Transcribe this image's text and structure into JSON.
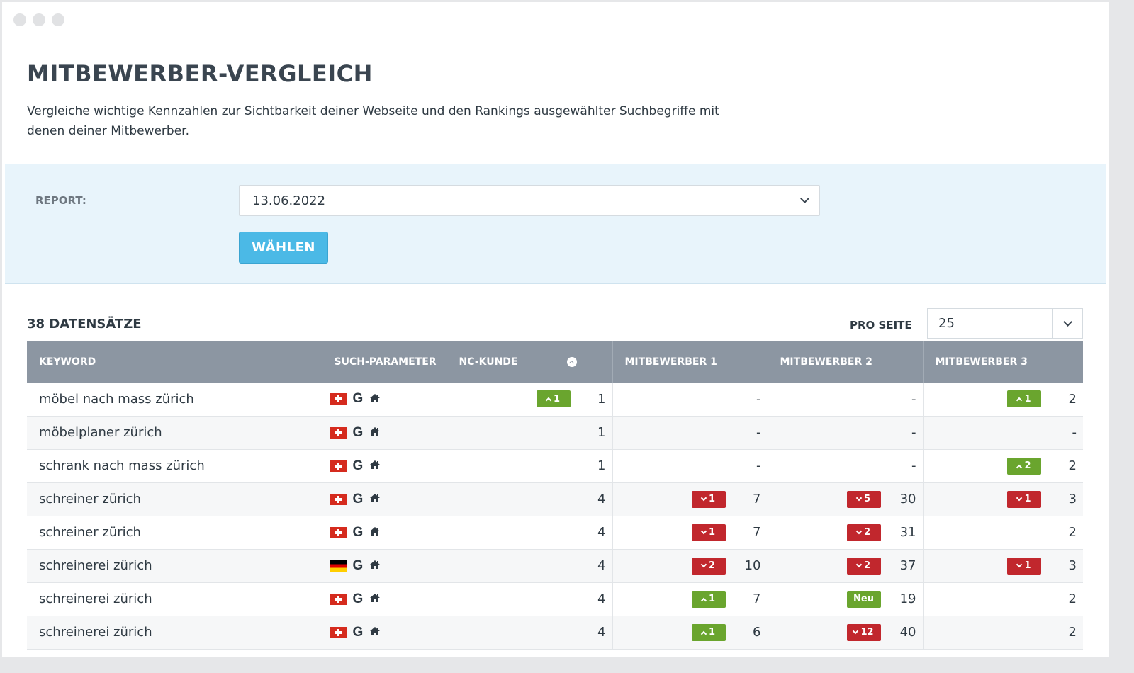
{
  "page": {
    "title": "MITBEWERBER-VERGLEICH",
    "description": "Vergleiche wichtige Kennzahlen zur Sichtbarkeit deiner Webseite und den Rankings ausgewählter Suchbegriffe mit denen deiner Mitbewerber."
  },
  "filter": {
    "report_label": "REPORT:",
    "report_value": "13.06.2022",
    "choose_button": "WÄHLEN"
  },
  "records": {
    "count_label": "38 DATENSÄTZE",
    "per_page_label": "PRO SEITE",
    "per_page_value": "25"
  },
  "table": {
    "headers": [
      "KEYWORD",
      "SUCH-PARAMETER",
      "NC-KUNDE",
      "MITBEWERBER 1",
      "MITBEWERBER 2",
      "MITBEWERBER 3"
    ],
    "rows": [
      {
        "keyword": "möbel nach mass zürich",
        "flag": "ch",
        "nc": {
          "badge": "1",
          "dir": "up",
          "value": "1"
        },
        "m1": {
          "value": "-"
        },
        "m2": {
          "value": "-"
        },
        "m3": {
          "badge": "1",
          "dir": "up",
          "value": "2"
        }
      },
      {
        "keyword": "möbelplaner zürich",
        "flag": "ch",
        "nc": {
          "value": "1"
        },
        "m1": {
          "value": "-"
        },
        "m2": {
          "value": "-"
        },
        "m3": {
          "value": "-"
        }
      },
      {
        "keyword": "schrank nach mass zürich",
        "flag": "ch",
        "nc": {
          "value": "1"
        },
        "m1": {
          "value": "-"
        },
        "m2": {
          "value": "-"
        },
        "m3": {
          "badge": "2",
          "dir": "up",
          "value": "2"
        }
      },
      {
        "keyword": "schreiner zürich",
        "flag": "ch",
        "nc": {
          "value": "4"
        },
        "m1": {
          "badge": "1",
          "dir": "down",
          "value": "7"
        },
        "m2": {
          "badge": "5",
          "dir": "down",
          "value": "30"
        },
        "m3": {
          "badge": "1",
          "dir": "down",
          "value": "3"
        }
      },
      {
        "keyword": "schreiner zürich",
        "flag": "ch",
        "nc": {
          "value": "4"
        },
        "m1": {
          "badge": "1",
          "dir": "down",
          "value": "7"
        },
        "m2": {
          "badge": "2",
          "dir": "down",
          "value": "31"
        },
        "m3": {
          "value": "2"
        }
      },
      {
        "keyword": "schreinerei zürich",
        "flag": "de",
        "nc": {
          "value": "4"
        },
        "m1": {
          "badge": "2",
          "dir": "down",
          "value": "10"
        },
        "m2": {
          "badge": "2",
          "dir": "down",
          "value": "37"
        },
        "m3": {
          "badge": "1",
          "dir": "down",
          "value": "3"
        }
      },
      {
        "keyword": "schreinerei zürich",
        "flag": "ch",
        "nc": {
          "value": "4"
        },
        "m1": {
          "badge": "1",
          "dir": "up",
          "value": "7"
        },
        "m2": {
          "badge": "Neu",
          "dir": "neu",
          "value": "19"
        },
        "m3": {
          "value": "2"
        }
      },
      {
        "keyword": "schreinerei zürich",
        "flag": "ch",
        "nc": {
          "value": "4"
        },
        "m1": {
          "badge": "1",
          "dir": "up",
          "value": "6"
        },
        "m2": {
          "badge": "12",
          "dir": "down",
          "value": "40"
        },
        "m3": {
          "value": "2"
        }
      }
    ]
  },
  "icons": {
    "search_engine": "G",
    "location": "home-icon"
  },
  "colors": {
    "accent": "#4bb9e6",
    "header_bg": "#8c96a2",
    "badge_up": "#6aa52e",
    "badge_down": "#c1272d"
  }
}
